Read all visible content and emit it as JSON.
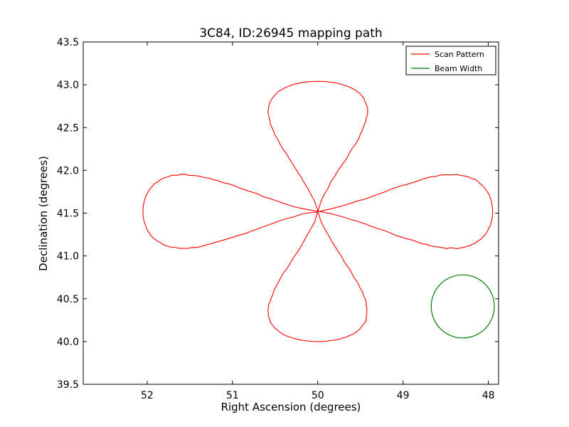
{
  "chart_data": {
    "type": "line",
    "title": "3C84, ID:26945 mapping path",
    "xlabel": "Right Ascension (degrees)",
    "ylabel": "Declination (degrees)",
    "xlim": [
      52.75,
      47.88
    ],
    "ylim": [
      39.5,
      43.5
    ],
    "x_ticks": [
      52,
      51,
      50,
      49,
      48
    ],
    "x_tick_labels": [
      "52",
      "51",
      "50",
      "49",
      "48"
    ],
    "y_ticks": [
      39.5,
      40.0,
      40.5,
      41.0,
      41.5,
      42.0,
      42.5,
      43.0,
      43.5
    ],
    "y_tick_labels": [
      "39.5",
      "40.0",
      "40.5",
      "41.0",
      "41.5",
      "42.0",
      "42.5",
      "43.0",
      "43.5"
    ],
    "grid": false,
    "legend_position": "top-right",
    "series": [
      {
        "name": "Scan Pattern",
        "color": "#ff0000",
        "shape": "four-petal scan pattern",
        "center": [
          50.0,
          41.52
        ],
        "petal_reach_ra": 2.05,
        "petal_reach_dec": 1.52,
        "petal_halfwidth_ra": 0.58,
        "petal_halfwidth_dec": 0.43
      },
      {
        "name": "Beam Width",
        "color": "#008000",
        "shape": "circle",
        "center": [
          48.3,
          40.41
        ],
        "radius": 0.37
      }
    ]
  }
}
